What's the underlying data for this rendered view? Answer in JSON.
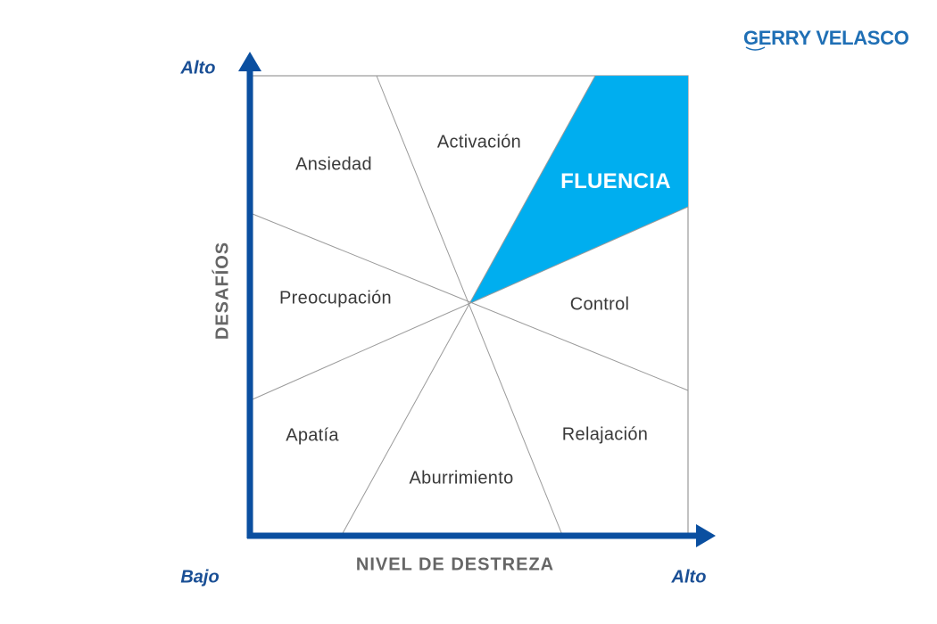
{
  "logo": {
    "text": "GERRY VELASCO"
  },
  "axes": {
    "y_title": "DESAFÍOS",
    "x_title": "NIVEL DE DESTREZA",
    "y_high": "Alto",
    "x_high": "Alto",
    "low": "Bajo"
  },
  "regions": {
    "ansiedad": "Ansiedad",
    "activacion": "Activación",
    "fluencia": "FLUENCIA",
    "preocupacion": "Preocupación",
    "control": "Control",
    "apatia": "Apatía",
    "aburrimiento": "Aburrimiento",
    "relajacion": "Relajación"
  },
  "colors": {
    "axis": "#0a4fa0",
    "highlight": "#00aeef",
    "divider": "#9a9a9a",
    "logo": "#1f6fb5"
  }
}
